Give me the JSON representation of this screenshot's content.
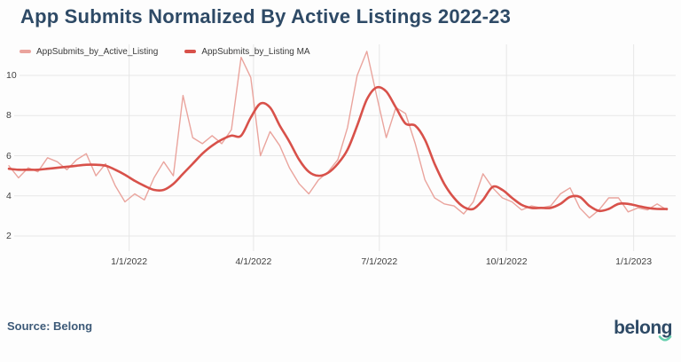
{
  "title": "App Submits Normalized By Active Listings 2022-23",
  "source_text": "Source: Belong",
  "logo_text": "belong",
  "colors": {
    "title": "#2e4a66",
    "raw_line": "#eaa49d",
    "ma_line": "#d8514a",
    "grid": "#e7e7e7",
    "tick_label": "#404040",
    "source_text": "#3d5a78",
    "logo": "#2e4a66",
    "logo_smile": "#67cfae",
    "background": "#fdfdfd"
  },
  "legend": [
    {
      "label": "AppSubmits_by_Active_Listing",
      "color": "#eaa49d"
    },
    {
      "label": "AppSubmits_by_Listing MA",
      "color": "#d8514a"
    }
  ],
  "chart_data": {
    "type": "line",
    "title": "App Submits Normalized By Active Listings 2022-23",
    "xlabel": "",
    "ylabel": "",
    "grid": true,
    "legend_position": "top-left",
    "y_ticks": [
      2,
      4,
      6,
      8,
      10
    ],
    "x_ticks": [
      "1/1/2022",
      "4/1/2022",
      "7/1/2022",
      "10/1/2022",
      "1/1/2023"
    ],
    "ylim": [
      1.3,
      11.6
    ],
    "x": [
      "10/6/2021",
      "10/13/2021",
      "10/20/2021",
      "10/27/2021",
      "11/3/2021",
      "11/10/2021",
      "11/17/2021",
      "11/24/2021",
      "12/1/2021",
      "12/8/2021",
      "12/15/2021",
      "12/22/2021",
      "12/29/2021",
      "1/5/2022",
      "1/12/2022",
      "1/19/2022",
      "1/26/2022",
      "2/2/2022",
      "2/9/2022",
      "2/16/2022",
      "2/23/2022",
      "3/2/2022",
      "3/9/2022",
      "3/16/2022",
      "3/23/2022",
      "3/30/2022",
      "4/6/2022",
      "4/13/2022",
      "4/20/2022",
      "4/27/2022",
      "5/4/2022",
      "5/11/2022",
      "5/18/2022",
      "5/25/2022",
      "6/1/2022",
      "6/8/2022",
      "6/15/2022",
      "6/22/2022",
      "6/29/2022",
      "7/6/2022",
      "7/13/2022",
      "7/20/2022",
      "7/27/2022",
      "8/3/2022",
      "8/10/2022",
      "8/17/2022",
      "8/24/2022",
      "8/31/2022",
      "9/7/2022",
      "9/14/2022",
      "9/21/2022",
      "9/28/2022",
      "10/5/2022",
      "10/12/2022",
      "10/19/2022",
      "10/26/2022",
      "11/2/2022",
      "11/9/2022",
      "11/16/2022",
      "11/23/2022",
      "11/30/2022",
      "12/7/2022",
      "12/14/2022",
      "12/21/2022",
      "12/28/2022",
      "1/4/2023",
      "1/11/2023",
      "1/18/2023",
      "1/25/2023"
    ],
    "series": [
      {
        "name": "AppSubmits_by_Active_Listing",
        "values": [
          5.5,
          4.9,
          5.4,
          5.2,
          5.9,
          5.7,
          5.3,
          5.8,
          6.1,
          5.0,
          5.6,
          4.5,
          3.7,
          4.1,
          3.8,
          4.9,
          5.7,
          5.0,
          9.0,
          6.9,
          6.6,
          7.0,
          6.6,
          7.3,
          10.9,
          9.9,
          6.0,
          7.2,
          6.5,
          5.4,
          4.6,
          4.1,
          4.8,
          5.2,
          5.8,
          7.4,
          10.0,
          11.2,
          9.0,
          6.9,
          8.4,
          8.1,
          6.6,
          4.8,
          3.9,
          3.6,
          3.5,
          3.1,
          3.7,
          5.1,
          4.4,
          3.9,
          3.7,
          3.3,
          3.5,
          3.4,
          3.5,
          4.1,
          4.4,
          3.4,
          2.9,
          3.3,
          3.9,
          3.9,
          3.2,
          3.4,
          3.3,
          3.6,
          3.3
        ]
      },
      {
        "name": "AppSubmits_by_Listing MA",
        "values": [
          5.35,
          5.3,
          5.3,
          5.3,
          5.35,
          5.4,
          5.45,
          5.5,
          5.55,
          5.55,
          5.5,
          5.3,
          5.05,
          4.75,
          4.5,
          4.3,
          4.3,
          4.6,
          5.1,
          5.6,
          6.1,
          6.5,
          6.8,
          7.0,
          7.0,
          7.9,
          8.6,
          8.4,
          7.5,
          6.7,
          5.8,
          5.2,
          5.0,
          5.15,
          5.6,
          6.3,
          7.5,
          8.8,
          9.4,
          9.2,
          8.4,
          7.6,
          7.5,
          6.8,
          5.6,
          4.6,
          3.9,
          3.45,
          3.35,
          3.8,
          4.45,
          4.3,
          3.9,
          3.55,
          3.4,
          3.4,
          3.4,
          3.6,
          3.95,
          3.95,
          3.5,
          3.25,
          3.35,
          3.6,
          3.6,
          3.5,
          3.4,
          3.35,
          3.35
        ]
      }
    ]
  }
}
